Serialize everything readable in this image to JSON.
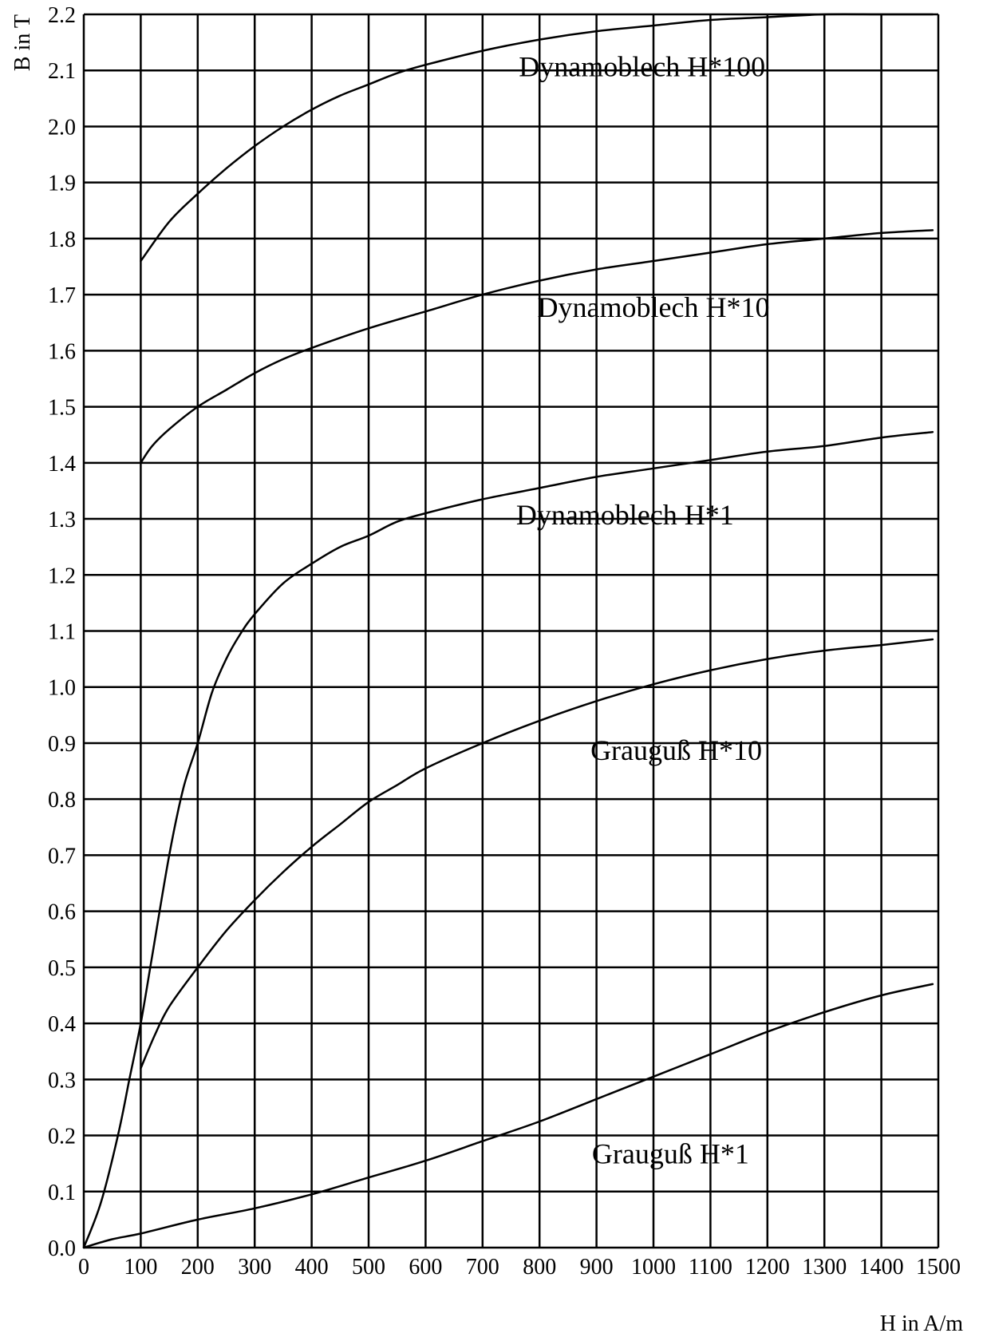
{
  "chart_data": {
    "type": "line",
    "title": "",
    "xlabel": "H in A/m",
    "ylabel": "B in T",
    "xlim": [
      0,
      1500
    ],
    "ylim": [
      0,
      2.2
    ],
    "grid": true,
    "legend": "none",
    "x_ticks": [
      "0",
      "100",
      "200",
      "300",
      "400",
      "500",
      "600",
      "700",
      "800",
      "900",
      "1000",
      "1100",
      "1200",
      "1300",
      "1400",
      "1500"
    ],
    "y_ticks": [
      "0.0",
      "0.1",
      "0.2",
      "0.3",
      "0.4",
      "0.5",
      "0.6",
      "0.7",
      "0.8",
      "0.9",
      "1.0",
      "1.1",
      "1.2",
      "1.3",
      "1.4",
      "1.5",
      "1.6",
      "1.7",
      "1.8",
      "1.9",
      "2.0",
      "2.1",
      "2.2"
    ],
    "series": [
      {
        "name": "Dynamoblech H*100",
        "label_at": [
          980,
          2.09
        ],
        "points": [
          [
            100,
            1.76
          ],
          [
            150,
            1.83
          ],
          [
            200,
            1.88
          ],
          [
            250,
            1.925
          ],
          [
            300,
            1.965
          ],
          [
            350,
            2.0
          ],
          [
            400,
            2.03
          ],
          [
            450,
            2.055
          ],
          [
            500,
            2.075
          ],
          [
            550,
            2.095
          ],
          [
            600,
            2.11
          ],
          [
            700,
            2.135
          ],
          [
            800,
            2.155
          ],
          [
            900,
            2.17
          ],
          [
            1000,
            2.18
          ],
          [
            1100,
            2.19
          ],
          [
            1200,
            2.195
          ],
          [
            1300,
            2.2
          ],
          [
            1400,
            2.2
          ],
          [
            1490,
            2.2
          ]
        ]
      },
      {
        "name": "Dynamoblech H*10",
        "label_at": [
          1000,
          1.66
        ],
        "points": [
          [
            100,
            1.4
          ],
          [
            120,
            1.43
          ],
          [
            150,
            1.46
          ],
          [
            200,
            1.5
          ],
          [
            250,
            1.53
          ],
          [
            300,
            1.56
          ],
          [
            350,
            1.585
          ],
          [
            400,
            1.605
          ],
          [
            500,
            1.64
          ],
          [
            600,
            1.67
          ],
          [
            700,
            1.7
          ],
          [
            800,
            1.725
          ],
          [
            900,
            1.745
          ],
          [
            1000,
            1.76
          ],
          [
            1100,
            1.775
          ],
          [
            1200,
            1.79
          ],
          [
            1300,
            1.8
          ],
          [
            1400,
            1.81
          ],
          [
            1490,
            1.815
          ]
        ]
      },
      {
        "name": "Dynamoblech H*1",
        "label_at": [
          950,
          1.29
        ],
        "points": [
          [
            0,
            0.0
          ],
          [
            30,
            0.08
          ],
          [
            60,
            0.2
          ],
          [
            80,
            0.3
          ],
          [
            100,
            0.4
          ],
          [
            120,
            0.52
          ],
          [
            150,
            0.7
          ],
          [
            175,
            0.82
          ],
          [
            200,
            0.9
          ],
          [
            225,
            0.99
          ],
          [
            250,
            1.05
          ],
          [
            275,
            1.095
          ],
          [
            300,
            1.13
          ],
          [
            350,
            1.185
          ],
          [
            400,
            1.22
          ],
          [
            450,
            1.25
          ],
          [
            500,
            1.27
          ],
          [
            550,
            1.295
          ],
          [
            600,
            1.31
          ],
          [
            700,
            1.335
          ],
          [
            800,
            1.355
          ],
          [
            900,
            1.375
          ],
          [
            1000,
            1.39
          ],
          [
            1100,
            1.405
          ],
          [
            1200,
            1.42
          ],
          [
            1300,
            1.43
          ],
          [
            1400,
            1.445
          ],
          [
            1490,
            1.455
          ]
        ]
      },
      {
        "name": "Grauguß H*10",
        "label_at": [
          1040,
          0.87
        ],
        "points": [
          [
            100,
            0.32
          ],
          [
            125,
            0.38
          ],
          [
            150,
            0.43
          ],
          [
            200,
            0.5
          ],
          [
            250,
            0.565
          ],
          [
            300,
            0.62
          ],
          [
            350,
            0.67
          ],
          [
            400,
            0.715
          ],
          [
            450,
            0.755
          ],
          [
            500,
            0.795
          ],
          [
            550,
            0.825
          ],
          [
            600,
            0.855
          ],
          [
            700,
            0.9
          ],
          [
            800,
            0.94
          ],
          [
            900,
            0.975
          ],
          [
            1000,
            1.005
          ],
          [
            1100,
            1.03
          ],
          [
            1200,
            1.05
          ],
          [
            1300,
            1.065
          ],
          [
            1400,
            1.075
          ],
          [
            1490,
            1.085
          ]
        ]
      },
      {
        "name": "Grauguß H*1",
        "label_at": [
          1030,
          0.15
        ],
        "points": [
          [
            0,
            0.0
          ],
          [
            50,
            0.015
          ],
          [
            100,
            0.025
          ],
          [
            200,
            0.05
          ],
          [
            300,
            0.07
          ],
          [
            400,
            0.095
          ],
          [
            500,
            0.125
          ],
          [
            600,
            0.155
          ],
          [
            700,
            0.19
          ],
          [
            800,
            0.225
          ],
          [
            900,
            0.265
          ],
          [
            1000,
            0.305
          ],
          [
            1100,
            0.345
          ],
          [
            1200,
            0.385
          ],
          [
            1300,
            0.42
          ],
          [
            1400,
            0.45
          ],
          [
            1490,
            0.47
          ]
        ]
      }
    ]
  }
}
